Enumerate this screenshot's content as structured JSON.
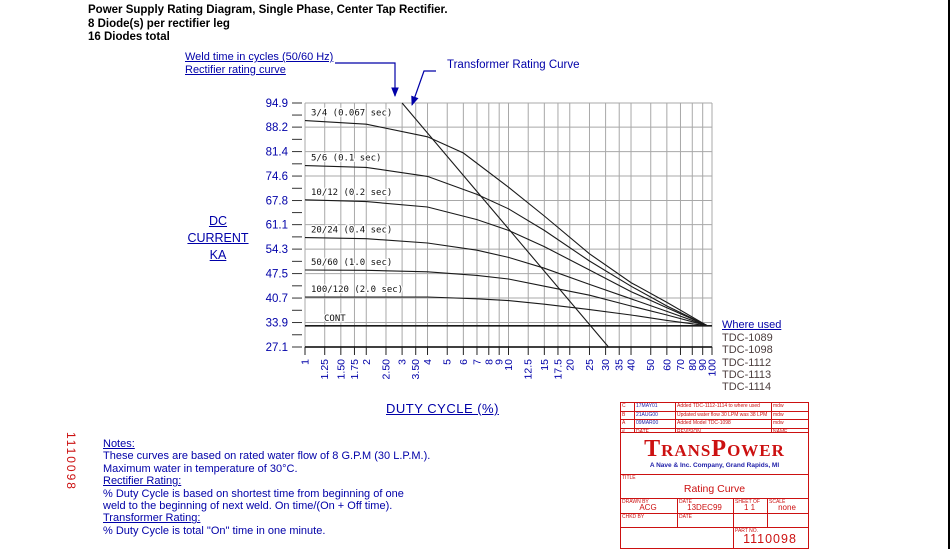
{
  "document": {
    "title_lines": [
      "Power Supply Rating Diagram, Single Phase, Center Tap Rectifier.",
      "8 Diode(s) per rectifier leg",
      "16 Diodes total"
    ],
    "side_part_number": "1110098"
  },
  "annotations": {
    "weld_time_label": "Weld time in cycles (50/60 Hz)",
    "rectifier_label": "Rectifier rating curve",
    "transformer_label": "Transformer Rating Curve"
  },
  "where_used": {
    "heading": "Where used",
    "items": [
      "TDC-1089",
      "TDC-1098",
      "TDC-1112",
      "TDC-1113",
      "TDC-1114"
    ]
  },
  "notes": {
    "lines": [
      {
        "text": "Notes:",
        "heading": true
      },
      {
        "text": "These curves are based on rated water flow of 8 G.P.M (30 L.P.M.).",
        "heading": false
      },
      {
        "text": "Maximum water in temperature of 30°C.",
        "heading": false
      },
      {
        "text": "Rectifier Rating:",
        "heading": true
      },
      {
        "text": "% Duty Cycle is based on shortest time from beginning of one",
        "heading": false
      },
      {
        "text": "weld to the beginning of next weld.  On time/(On + Off time).",
        "heading": false
      },
      {
        "text": "Transformer Rating:",
        "heading": true
      },
      {
        "text": "% Duty Cycle is total \"On\" time in one minute.",
        "heading": false
      }
    ]
  },
  "title_block": {
    "revisions": [
      {
        "rev": "C",
        "date": "17MAY01",
        "description": "Added TDC-1112-1114 to where used",
        "name": "mdw",
        "header": false
      },
      {
        "rev": "B",
        "date": "21AUG00",
        "description": "Updated water flow 30 LPM was 38 LPM",
        "name": "mdw",
        "header": false
      },
      {
        "rev": "A",
        "date": "09MAR00",
        "description": "Added Model TDC-1098",
        "name": "mdw",
        "header": false
      },
      {
        "rev": "#",
        "date": "DATE",
        "description": "REVISION",
        "name": "NAME",
        "header": true
      }
    ],
    "logo_text": "TransPower",
    "logo_subtitle": "A Nave & Inc. Company, Grand Rapids, MI",
    "title_label": "TITLE",
    "title_value": "Rating Curve",
    "fields": {
      "drawn_by_label": "DRAWN BY",
      "drawn_by_value": "ACG",
      "date_label": "DATE",
      "date_value": "13DEC99",
      "sheet_label": "SHEET OF",
      "sheet_value": "1 1",
      "scale_label": "SCALE",
      "scale_value": "none",
      "chkd_by_label": "CHKD BY",
      "chkd_date_label": "DATE",
      "part_no_label": "PART NO.",
      "part_no_value": "1110098"
    }
  },
  "colors": {
    "accent_blue": "#0000a8",
    "drawing_red": "#cc1111",
    "grid_gray": "#a8a8a8",
    "curve_ink": "#1a1a1a",
    "where_used_text": "#4c3e3e"
  },
  "chart_data": {
    "type": "line",
    "title": "Power Supply Rating Diagram",
    "x_axis": {
      "label": "DUTY CYCLE (%)",
      "scale": "log",
      "range": [
        1,
        100
      ],
      "tick_values": [
        1,
        1.25,
        1.5,
        1.75,
        2,
        2.5,
        3,
        3.5,
        4,
        5,
        6,
        7,
        8,
        9,
        10,
        12.5,
        15,
        17.5,
        20,
        25,
        30,
        35,
        40,
        50,
        60,
        70,
        80,
        90,
        100
      ],
      "tick_labels": [
        "1",
        "1.25",
        "1.50",
        "1.75",
        "2",
        "2.50",
        "3",
        "3.50",
        "4",
        "5",
        "6",
        "7",
        "8",
        "9",
        "10",
        "12.5",
        "15",
        "17.5",
        "20",
        "25",
        "30",
        "35",
        "40",
        "50",
        "60",
        "70",
        "80",
        "90",
        "100"
      ]
    },
    "y_axis": {
      "label": "DC CURRENT KA",
      "label_lines": [
        "DC",
        "CURRENT",
        "KA"
      ],
      "range": [
        27.1,
        94.9
      ],
      "tick_values": [
        94.9,
        88.2,
        81.4,
        74.6,
        67.8,
        61.1,
        54.3,
        47.5,
        40.7,
        33.9,
        27.1
      ]
    },
    "grid": true,
    "legend_position": "inline-labels",
    "series": [
      {
        "name": "3/4 (0.067 sec)",
        "points": [
          [
            1,
            90
          ],
          [
            2,
            89
          ],
          [
            4,
            85.5
          ],
          [
            6,
            81
          ],
          [
            10,
            71.5
          ],
          [
            15,
            63.5
          ],
          [
            25,
            53
          ],
          [
            40,
            45
          ],
          [
            60,
            39.5
          ],
          [
            95,
            33
          ]
        ]
      },
      {
        "name": "5/6 (0.1 sec)",
        "points": [
          [
            1,
            77.5
          ],
          [
            2,
            77
          ],
          [
            4,
            74.5
          ],
          [
            7,
            69.5
          ],
          [
            10,
            65.5
          ],
          [
            15,
            59.5
          ],
          [
            25,
            51
          ],
          [
            40,
            44
          ],
          [
            60,
            38.5
          ],
          [
            95,
            33
          ]
        ]
      },
      {
        "name": "10/12 (0.2 sec)",
        "points": [
          [
            1,
            68
          ],
          [
            2,
            67.5
          ],
          [
            4,
            66
          ],
          [
            7,
            62.5
          ],
          [
            10,
            59.5
          ],
          [
            15,
            55
          ],
          [
            25,
            48.5
          ],
          [
            40,
            42.5
          ],
          [
            60,
            38
          ],
          [
            95,
            33
          ]
        ]
      },
      {
        "name": "20/24 (0.4 sec)",
        "points": [
          [
            1,
            57.5
          ],
          [
            2,
            57.2
          ],
          [
            4,
            56
          ],
          [
            7,
            54
          ],
          [
            10,
            52
          ],
          [
            15,
            49
          ],
          [
            25,
            44.5
          ],
          [
            40,
            40.5
          ],
          [
            60,
            37
          ],
          [
            95,
            33
          ]
        ]
      },
      {
        "name": "50/60 (1.0 sec)",
        "points": [
          [
            1,
            48.5
          ],
          [
            2,
            48.4
          ],
          [
            4,
            48
          ],
          [
            7,
            47
          ],
          [
            10,
            46
          ],
          [
            15,
            44
          ],
          [
            25,
            41.5
          ],
          [
            40,
            38.5
          ],
          [
            60,
            36
          ],
          [
            95,
            33
          ]
        ]
      },
      {
        "name": "100/120 (2.0 sec)",
        "points": [
          [
            1,
            41
          ],
          [
            2,
            41
          ],
          [
            4,
            41
          ],
          [
            7,
            40.5
          ],
          [
            10,
            40
          ],
          [
            15,
            39
          ],
          [
            25,
            37.5
          ],
          [
            40,
            36
          ],
          [
            60,
            34.5
          ],
          [
            95,
            33
          ]
        ]
      },
      {
        "name": "CONT",
        "points": [
          [
            1,
            33
          ],
          [
            100,
            33
          ]
        ]
      },
      {
        "name": "Transformer Rating Curve",
        "points": [
          [
            3,
            94.9
          ],
          [
            31,
            27.1
          ]
        ]
      }
    ]
  }
}
